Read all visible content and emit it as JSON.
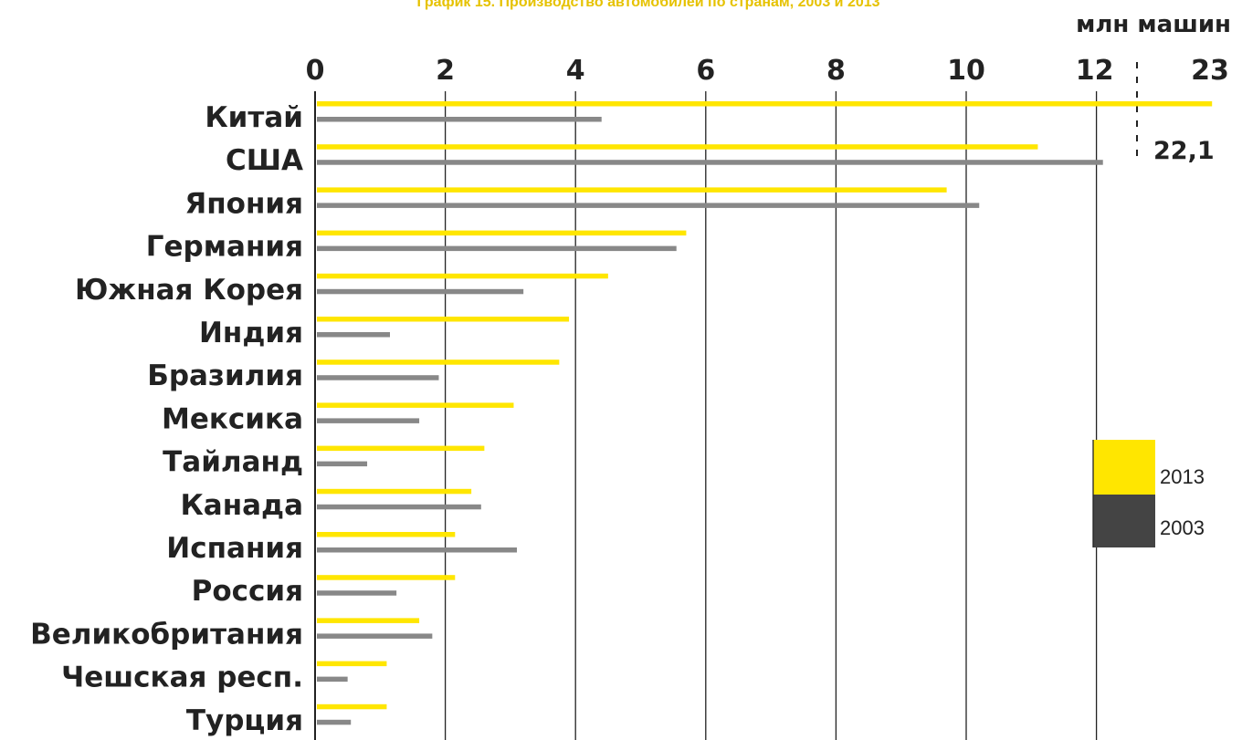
{
  "chart_data": {
    "type": "bar",
    "title": "График 15. Производство автомобилей по странам, 2003 и 2013",
    "unit_label": "млн машин",
    "categories": [
      "Китай",
      "США",
      "Япония",
      "Германия",
      "Южная Корея",
      "Индия",
      "Бразилия",
      "Мексика",
      "Тайланд",
      "Канада",
      "Испания",
      "Россия",
      "Великобритания",
      "Чешская респ.",
      "Турция"
    ],
    "series": [
      {
        "name": "2013",
        "color": "#ffe600",
        "values": [
          22.1,
          11.1,
          9.7,
          5.7,
          4.5,
          3.9,
          3.75,
          3.05,
          2.6,
          2.4,
          2.15,
          2.15,
          1.6,
          1.1,
          1.1
        ]
      },
      {
        "name": "2003",
        "color": "#888888",
        "values": [
          4.4,
          12.1,
          10.2,
          5.55,
          3.2,
          1.15,
          1.9,
          1.6,
          0.8,
          2.55,
          3.1,
          1.25,
          1.8,
          0.5,
          0.55
        ]
      }
    ],
    "x_ticks": [
      "0",
      "2",
      "4",
      "6",
      "8",
      "10",
      "12",
      "23"
    ],
    "xlim": [
      0,
      23
    ],
    "axis_break": {
      "from": 12.6,
      "to": 23
    },
    "break_value_label": "22,1",
    "legend": {
      "position": "right",
      "entries": [
        "2013",
        "2003"
      ],
      "colors": [
        "#ffe600",
        "#444444"
      ]
    },
    "grid": true
  }
}
